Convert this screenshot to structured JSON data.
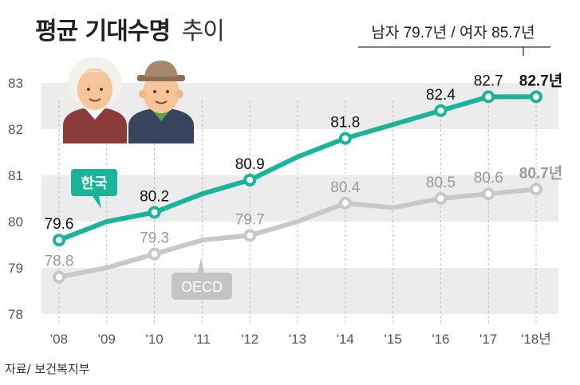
{
  "title": {
    "main": "평균 기대수명",
    "sub": "추이"
  },
  "note": "남자 79.7년 / 여자 85.7년",
  "source": "자료/ 보건복지부",
  "colors": {
    "korea": "#1bb39a",
    "oecd": "#c8c8c8",
    "band": "#ececec",
    "korea_label_bg": "#1bb39a",
    "oecd_label_bg": "#c4c4c4"
  },
  "icons": [
    "elderly-woman-icon",
    "elderly-man-icon"
  ],
  "chart_data": {
    "type": "line",
    "categories": [
      "'08",
      "'09",
      "'10",
      "'11",
      "'12",
      "'13",
      "'14",
      "'15",
      "'16",
      "'17",
      "'18년"
    ],
    "ylim": [
      78,
      83
    ],
    "yticks": [
      78,
      79,
      80,
      81,
      82,
      83
    ],
    "series": [
      {
        "name": "한국",
        "values": [
          79.6,
          80.0,
          80.2,
          80.6,
          80.9,
          81.4,
          81.8,
          82.1,
          82.4,
          82.7,
          82.7
        ],
        "labels": [
          "79.6",
          "",
          "80.2",
          "",
          "80.9",
          "",
          "81.8",
          "",
          "82.4",
          "82.7",
          "82.7년"
        ]
      },
      {
        "name": "OECD",
        "values": [
          78.8,
          79.0,
          79.3,
          79.6,
          79.7,
          80.0,
          80.4,
          80.3,
          80.5,
          80.6,
          80.7
        ],
        "labels": [
          "78.8",
          "",
          "79.3",
          "",
          "79.7",
          "",
          "80.4",
          "",
          "80.5",
          "80.6",
          "80.7년"
        ]
      }
    ]
  }
}
